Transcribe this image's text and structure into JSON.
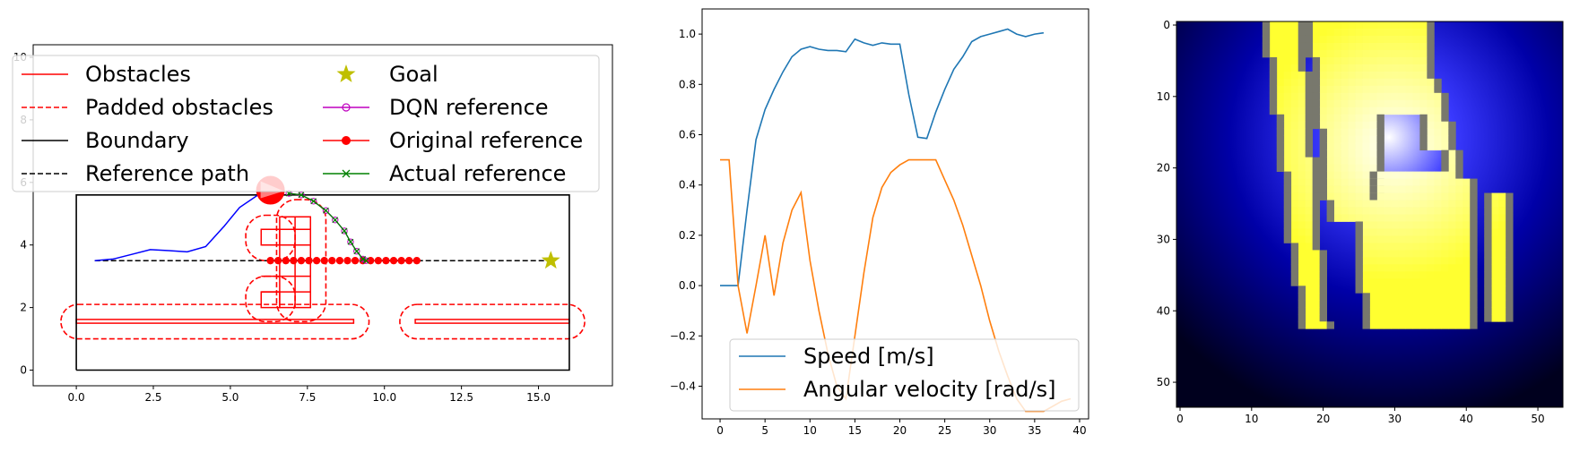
{
  "chart_data": [
    {
      "type": "line",
      "xlim": [
        -1.4,
        17.4
      ],
      "ylim": [
        -0.5,
        10.4
      ],
      "xticks": [
        "0.0",
        "2.5",
        "5.0",
        "7.5",
        "10.0",
        "12.5",
        "15.0"
      ],
      "xtick_values": [
        0,
        2.5,
        5,
        7.5,
        10,
        12.5,
        15
      ],
      "yticks": [
        "0",
        "2",
        "4",
        "6",
        "8",
        "10"
      ],
      "ytick_values": [
        0,
        2,
        4,
        6,
        8,
        10
      ],
      "legend": {
        "placement": "top-left",
        "entries": [
          {
            "label": "Obstacles",
            "style": "solid",
            "color": "#ff0000"
          },
          {
            "label": "Padded obstacles",
            "style": "dashed",
            "color": "#ff0000"
          },
          {
            "label": "Boundary",
            "style": "solid",
            "color": "#000000"
          },
          {
            "label": "Reference path",
            "style": "dashed",
            "color": "#000000"
          },
          {
            "label": "Goal",
            "style": "star",
            "color": "#bfbf00"
          },
          {
            "label": "DQN reference",
            "style": "line-circle",
            "color": "#bf00bf"
          },
          {
            "label": "Original reference",
            "style": "line-dot",
            "color": "#ff0000"
          },
          {
            "label": "Actual reference",
            "style": "line-x",
            "color": "#008000"
          }
        ]
      },
      "boundary": [
        [
          0,
          0
        ],
        [
          16,
          0
        ],
        [
          16,
          5.6
        ],
        [
          0,
          5.6
        ],
        [
          0,
          0
        ]
      ],
      "reference_path": [
        [
          0.6,
          3.5
        ],
        [
          15.4,
          3.5
        ]
      ],
      "goal": [
        15.4,
        3.5
      ],
      "obstacles": [
        {
          "x": 0,
          "y": 1.5,
          "w": 9.0,
          "h": 0.12
        },
        {
          "x": 11.0,
          "y": 1.5,
          "w": 5.0,
          "h": 0.12
        },
        {
          "x": 6.0,
          "y": 2.0,
          "w": 0.6,
          "h": 0.5
        },
        {
          "x": 6.0,
          "y": 4.0,
          "w": 0.6,
          "h": 0.5
        },
        {
          "x": 6.6,
          "y": 2.0,
          "w": 1.0,
          "h": 2.9
        }
      ],
      "padded_obstacles": [
        {
          "x": -0.5,
          "y": 1.0,
          "w": 10.0,
          "h": 1.1
        },
        {
          "x": 10.5,
          "y": 1.0,
          "w": 6.0,
          "h": 1.1
        },
        {
          "x": 5.5,
          "y": 1.55,
          "w": 1.6,
          "h": 1.45
        },
        {
          "x": 6.5,
          "y": 1.55,
          "w": 1.6,
          "h": 3.9
        },
        {
          "x": 5.5,
          "y": 3.5,
          "w": 1.6,
          "h": 1.45
        }
      ],
      "robot_trajectory": [
        [
          0.6,
          3.5
        ],
        [
          1.2,
          3.55
        ],
        [
          1.8,
          3.7
        ],
        [
          2.4,
          3.85
        ],
        [
          3.0,
          3.82
        ],
        [
          3.6,
          3.78
        ],
        [
          4.2,
          3.95
        ],
        [
          4.8,
          4.6
        ],
        [
          5.3,
          5.2
        ],
        [
          5.9,
          5.6
        ],
        [
          6.3,
          5.75
        ]
      ],
      "robot": {
        "x": 6.3,
        "y": 5.75,
        "heading_deg": -5
      },
      "dqn_reference": [
        [
          6.9,
          5.65
        ],
        [
          7.3,
          5.6
        ],
        [
          7.7,
          5.4
        ],
        [
          8.1,
          5.1
        ],
        [
          8.4,
          4.8
        ],
        [
          8.7,
          4.45
        ],
        [
          8.9,
          4.1
        ],
        [
          9.1,
          3.8
        ],
        [
          9.3,
          3.55
        ],
        [
          9.4,
          3.5
        ]
      ],
      "original_reference_x": [
        6.3,
        6.55,
        6.8,
        7.05,
        7.3,
        7.55,
        7.8,
        8.05,
        8.3,
        8.55,
        8.8,
        9.05,
        9.3,
        9.55,
        9.8,
        10.05,
        10.3,
        10.55,
        10.8,
        11.05
      ],
      "original_reference_y": 3.5,
      "actual_reference": [
        [
          6.9,
          5.65
        ],
        [
          7.3,
          5.6
        ],
        [
          7.7,
          5.4
        ],
        [
          8.1,
          5.1
        ],
        [
          8.4,
          4.8
        ],
        [
          8.7,
          4.45
        ],
        [
          8.9,
          4.1
        ],
        [
          9.1,
          3.8
        ],
        [
          9.3,
          3.55
        ],
        [
          9.4,
          3.5
        ]
      ]
    },
    {
      "type": "line",
      "xlim": [
        -2,
        41
      ],
      "ylim": [
        -0.53,
        1.1
      ],
      "xticks": [
        "0",
        "5",
        "10",
        "15",
        "20",
        "25",
        "30",
        "35",
        "40"
      ],
      "xtick_values": [
        0,
        5,
        10,
        15,
        20,
        25,
        30,
        35,
        40
      ],
      "yticks": [
        "−0.4",
        "−0.2",
        "0.0",
        "0.2",
        "0.4",
        "0.6",
        "0.8",
        "1.0"
      ],
      "ytick_values": [
        -0.4,
        -0.2,
        0.0,
        0.2,
        0.4,
        0.6,
        0.8,
        1.0
      ],
      "legend": {
        "placement": "lower-center"
      },
      "series": [
        {
          "name": "Speed [m/s]",
          "color": "#1f77b4",
          "values": [
            0.0,
            0.0,
            0.0,
            0.3,
            0.58,
            0.7,
            0.78,
            0.85,
            0.91,
            0.94,
            0.95,
            0.94,
            0.935,
            0.935,
            0.93,
            0.98,
            0.965,
            0.955,
            0.965,
            0.96,
            0.96,
            0.76,
            0.59,
            0.585,
            0.69,
            0.78,
            0.86,
            0.91,
            0.97,
            0.99,
            1.0,
            1.01,
            1.02,
            1.0,
            0.99,
            1.0,
            1.005,
            null,
            null,
            null
          ]
        },
        {
          "name": "Angular velocity [rad/s]",
          "color": "#ff7f0e",
          "values": [
            0.5,
            0.5,
            0.0,
            -0.19,
            0.0,
            0.2,
            -0.04,
            0.17,
            0.3,
            0.37,
            0.1,
            -0.1,
            -0.27,
            -0.4,
            -0.45,
            -0.2,
            0.05,
            0.27,
            0.39,
            0.45,
            0.48,
            0.5,
            0.5,
            0.5,
            0.5,
            0.42,
            0.34,
            0.24,
            0.12,
            0.0,
            -0.14,
            -0.26,
            -0.36,
            -0.45,
            -0.5,
            -0.5,
            -0.5,
            -0.48,
            -0.46,
            -0.45
          ]
        }
      ]
    },
    {
      "type": "heatmap",
      "xlim": [
        -0.5,
        53.5
      ],
      "ylim": [
        53.5,
        -0.5
      ],
      "xticks": [
        "0",
        "10",
        "20",
        "30",
        "40",
        "50"
      ],
      "xtick_values": [
        0,
        10,
        20,
        30,
        40,
        50
      ],
      "yticks": [
        "0",
        "10",
        "20",
        "30",
        "40",
        "50"
      ],
      "ytick_values": [
        0,
        10,
        20,
        30,
        40,
        50
      ],
      "colormap": [
        "#000020",
        "#0000ff",
        "#ffff00"
      ]
    }
  ]
}
